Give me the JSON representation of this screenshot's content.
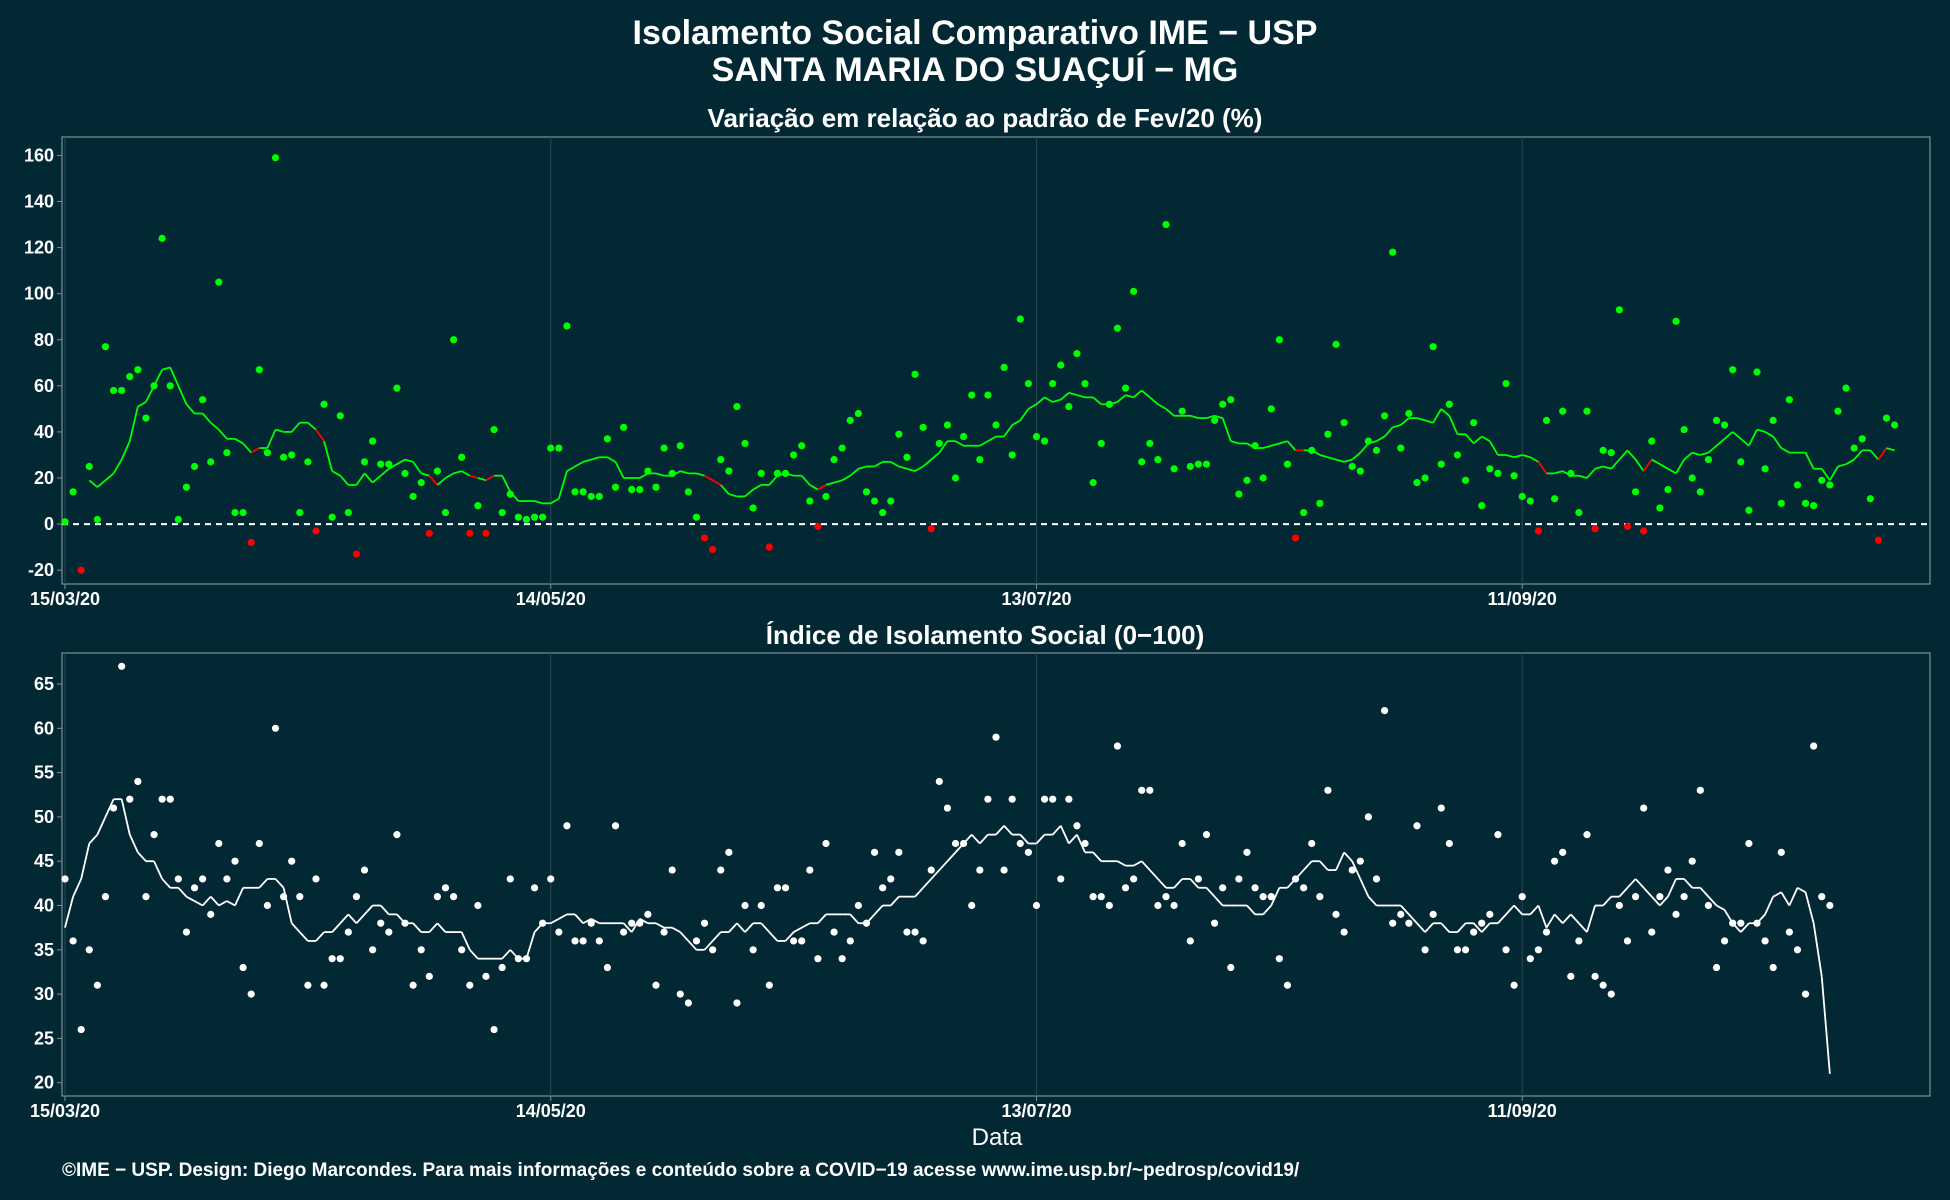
{
  "header": {
    "title": "Isolamento Social Comparativo IME − USP",
    "subtitle": "SANTA MARIA DO SUAÇUÍ − MG"
  },
  "footer": {
    "credit": "©IME − USP. Design: Diego Marcondes. Para mais informações e conteúdo sobre a COVID−19 acesse www.ime.usp.br/~pedrosp/covid19/"
  },
  "colors": {
    "background": "#022834",
    "panel_border": "#7f8f96",
    "grid": "#2c4852",
    "positive": "#00ff00",
    "negative": "#ff0000",
    "index": "#ffffff"
  },
  "chart_data": [
    {
      "type": "scatter",
      "title": "Variação em relação ao padrão de Fev/20 (%)",
      "xlabel": "",
      "ylabel": "",
      "x_start": "15/03/20",
      "x_end": "31/10/20",
      "x_ticks": [
        "15/03/20",
        "14/05/20",
        "13/07/20",
        "11/09/20"
      ],
      "y_ticks": [
        -20,
        0,
        20,
        40,
        60,
        80,
        100,
        120,
        140,
        160
      ],
      "ylim": [
        -26,
        168
      ],
      "reference_line": 0,
      "colors": {
        "positive": "#00ff00",
        "negative": "#ff0000"
      },
      "series": [
        {
          "values": [
            1,
            14,
            -20,
            25,
            2,
            77,
            58,
            58,
            64,
            67,
            46,
            60,
            124,
            60,
            2,
            16,
            25,
            54,
            27,
            105,
            31,
            5,
            5,
            -8,
            67,
            31,
            159,
            29,
            30,
            5,
            27,
            -3,
            52,
            3,
            47,
            5,
            -13,
            27,
            36,
            26,
            26,
            59,
            22,
            12,
            18,
            -4,
            23,
            5,
            80,
            29,
            -4,
            8,
            -4,
            41,
            5,
            13,
            3,
            2,
            3,
            3,
            33,
            33,
            86,
            14,
            14,
            12,
            12,
            37,
            16,
            42,
            15,
            15,
            23,
            16,
            33,
            22,
            34,
            14,
            3,
            -6,
            -11,
            28,
            23,
            51,
            35,
            7,
            22,
            -10,
            22,
            22,
            30,
            34,
            10,
            -1,
            12,
            28,
            33,
            45,
            48,
            14,
            10,
            5,
            10,
            39,
            29,
            65,
            42,
            -2,
            35,
            43,
            20,
            38,
            56,
            28,
            56,
            43,
            68,
            30,
            89,
            61,
            38,
            36,
            61,
            69,
            51,
            74,
            61,
            18,
            35,
            52,
            85,
            59,
            101,
            27,
            35,
            28,
            130,
            24,
            49,
            25,
            26,
            26,
            45,
            52,
            54,
            13,
            19,
            34,
            20,
            50,
            80,
            26,
            -6,
            5,
            32,
            9,
            39,
            78,
            44,
            25,
            23,
            36,
            32,
            47,
            118,
            33,
            48,
            18,
            20,
            77,
            26,
            52,
            30,
            19,
            44,
            8,
            24,
            22,
            61,
            21,
            12,
            10,
            -3,
            45,
            11,
            49,
            22,
            5,
            49,
            -2,
            32,
            31,
            93,
            -1,
            14,
            -3,
            36,
            7,
            15,
            88,
            41,
            20,
            14,
            28,
            45,
            43,
            67,
            27,
            6,
            66,
            24,
            45,
            9,
            54,
            17,
            9,
            8,
            19,
            17,
            49,
            59,
            33,
            37,
            11,
            -7,
            46,
            43
          ]
        },
        {
          "name": "",
          "values": [
            19,
            16,
            19,
            22,
            28,
            36,
            51,
            53,
            60,
            67,
            68,
            60,
            52,
            48,
            48,
            44,
            41,
            37,
            37,
            35,
            31,
            33,
            33,
            41,
            40,
            40,
            44,
            44,
            41,
            36,
            23,
            21,
            17,
            17,
            22,
            18,
            21,
            24,
            26,
            28,
            27,
            22,
            21,
            17,
            20,
            22,
            23,
            21,
            20,
            19,
            21,
            21,
            14,
            10,
            10,
            10,
            9,
            9,
            11,
            23,
            25,
            27,
            28,
            29,
            29,
            27,
            20,
            20,
            20,
            22,
            22,
            21,
            21,
            23,
            22,
            22,
            21,
            19,
            17,
            13,
            12,
            12,
            15,
            17,
            17,
            21,
            22,
            21,
            21,
            17,
            15,
            17,
            18,
            19,
            21,
            24,
            25,
            25,
            27,
            27,
            25,
            24,
            23,
            25,
            28,
            31,
            36,
            36,
            34,
            34,
            34,
            36,
            38,
            38,
            43,
            45,
            50,
            52,
            55,
            53,
            54,
            57,
            56,
            55,
            55,
            52,
            52,
            53,
            56,
            55,
            58,
            55,
            52,
            50,
            47,
            47,
            47,
            46,
            46,
            47,
            46,
            36,
            35,
            35,
            33,
            33,
            34,
            35,
            36,
            32,
            32,
            32,
            30,
            29,
            28,
            27,
            28,
            31,
            35,
            36,
            38,
            42,
            43,
            46,
            46,
            45,
            44,
            50,
            47,
            39,
            39,
            35,
            38,
            36,
            30,
            30,
            29,
            30,
            29,
            27,
            22,
            22,
            23,
            21,
            21,
            20,
            24,
            25,
            24,
            28,
            32,
            28,
            23,
            28,
            26,
            24,
            22,
            28,
            31,
            30,
            31,
            34,
            37,
            40,
            37,
            34,
            41,
            40,
            38,
            33,
            31,
            31,
            31,
            24,
            24,
            19,
            25,
            26,
            28,
            32,
            32,
            28,
            33,
            32
          ]
        }
      ]
    },
    {
      "type": "scatter",
      "title": "Índice de Isolamento Social (0−100)",
      "xlabel": "Data",
      "ylabel": "",
      "x_start": "15/03/20",
      "x_end": "31/10/20",
      "x_ticks": [
        "15/03/20",
        "14/05/20",
        "13/07/20",
        "11/09/20"
      ],
      "y_ticks": [
        20,
        25,
        30,
        35,
        40,
        45,
        50,
        55,
        60,
        65
      ],
      "ylim": [
        18.5,
        68.5
      ],
      "colors": {
        "points": "#ffffff",
        "line": "#ffffff"
      },
      "series": [
        {
          "values": [
            43,
            36,
            26,
            35,
            31,
            41,
            51,
            67,
            52,
            54,
            41,
            48,
            52,
            52,
            43,
            37,
            42,
            43,
            39,
            47,
            43,
            45,
            33,
            30,
            47,
            40,
            60,
            41,
            45,
            41,
            31,
            43,
            31,
            34,
            34,
            37,
            41,
            44,
            35,
            38,
            37,
            48,
            38,
            31,
            35,
            32,
            41,
            42,
            41,
            35,
            31,
            40,
            32,
            26,
            33,
            43,
            34,
            34,
            42,
            38,
            43,
            37,
            49,
            36,
            36,
            38,
            36,
            33,
            49,
            37,
            38,
            38,
            39,
            31,
            37,
            44,
            30,
            29,
            36,
            38,
            35,
            44,
            46,
            29,
            40,
            35,
            40,
            31,
            42,
            42,
            36,
            36,
            44,
            34,
            47,
            37,
            34,
            36,
            40,
            38,
            46,
            42,
            43,
            46,
            37,
            37,
            36,
            44,
            54,
            51,
            47,
            47,
            40,
            44,
            52,
            59,
            44,
            52,
            47,
            46,
            40,
            52,
            52,
            43,
            52,
            49,
            47,
            41,
            41,
            40,
            58,
            42,
            43,
            53,
            53,
            40,
            41,
            40,
            47,
            36,
            43,
            48,
            38,
            42,
            33,
            43,
            46,
            42,
            41,
            41,
            34,
            31,
            43,
            42,
            47,
            41,
            53,
            39,
            37,
            44,
            45,
            50,
            43,
            62,
            38,
            39,
            38,
            49,
            35,
            39,
            51,
            47,
            35,
            35,
            37,
            38,
            39,
            48,
            35,
            31,
            41,
            34,
            35,
            37,
            45,
            46,
            32,
            36,
            48,
            32,
            31,
            30,
            40,
            36,
            41,
            51,
            37,
            41,
            44,
            39,
            41,
            45,
            53,
            40,
            33,
            36,
            38,
            38,
            47,
            38,
            36,
            33,
            46,
            37,
            35,
            30,
            58,
            41,
            40
          ]
        },
        {
          "name": "",
          "values": [
            37.5,
            41,
            43,
            47,
            48,
            50,
            52,
            52,
            48,
            46,
            45,
            45,
            43,
            42,
            42,
            41,
            40.5,
            40,
            41,
            40,
            40.5,
            40,
            42,
            42,
            42,
            43,
            43,
            42,
            38,
            37,
            36,
            36,
            37,
            37,
            38,
            39,
            38,
            39,
            40,
            40,
            39,
            39,
            38,
            38,
            37,
            37,
            38,
            37,
            37,
            37,
            35,
            34,
            34,
            34,
            34,
            35,
            34,
            34,
            37,
            38,
            38,
            38.5,
            39,
            39,
            38,
            38.5,
            38,
            38,
            38,
            38,
            37,
            38.5,
            38,
            38,
            37.5,
            37.5,
            37,
            36,
            35,
            35,
            36,
            37,
            37,
            38,
            37,
            38,
            38,
            37,
            36,
            36,
            37,
            37.5,
            38,
            38,
            39,
            39,
            39,
            39,
            38,
            38,
            39,
            40,
            40,
            41,
            41,
            41,
            42,
            43,
            44,
            45,
            46,
            47,
            48,
            47,
            48,
            48,
            49,
            48,
            48,
            47,
            47,
            48,
            48,
            49,
            47,
            48,
            46,
            46,
            45,
            45,
            45,
            44.5,
            44.5,
            45,
            44,
            43,
            42,
            42,
            43,
            43,
            42,
            42,
            41,
            40,
            40,
            40,
            40,
            39,
            39,
            40,
            42,
            42,
            43,
            44,
            45,
            45,
            44,
            44,
            46,
            45,
            43,
            41,
            40,
            40,
            40,
            40,
            39,
            38,
            37,
            38,
            38,
            37,
            37,
            38,
            38,
            37,
            38,
            38,
            39,
            40,
            39,
            39,
            40,
            37.5,
            39,
            38,
            39,
            38,
            37,
            40,
            40,
            41,
            41,
            42,
            43,
            42,
            41,
            40,
            41,
            43,
            43,
            42,
            42,
            41,
            40,
            39.5,
            38,
            37,
            38,
            38,
            39,
            41,
            41.5,
            40,
            42,
            41.5,
            38,
            32,
            21
          ]
        }
      ]
    }
  ]
}
